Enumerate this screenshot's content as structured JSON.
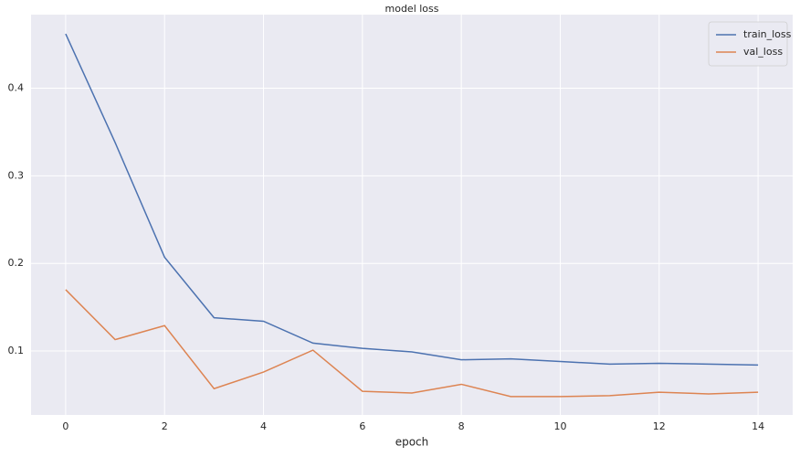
{
  "chart_data": {
    "type": "line",
    "title": "model loss",
    "xlabel": "epoch",
    "x": [
      0,
      1,
      2,
      3,
      4,
      5,
      6,
      7,
      8,
      9,
      10,
      11,
      12,
      13,
      14
    ],
    "series": [
      {
        "name": "train_loss",
        "color": "#4c72b0",
        "values": [
          0.462,
          0.338,
          0.207,
          0.138,
          0.134,
          0.109,
          0.103,
          0.099,
          0.09,
          0.091,
          0.088,
          0.085,
          0.086,
          0.085,
          0.084
        ]
      },
      {
        "name": "val_loss",
        "color": "#dd8452",
        "values": [
          0.17,
          0.113,
          0.129,
          0.057,
          0.076,
          0.101,
          0.054,
          0.052,
          0.062,
          0.048,
          0.048,
          0.049,
          0.053,
          0.051,
          0.053
        ]
      }
    ],
    "xlim": [
      -0.7,
      14.7
    ],
    "xticks": [
      0,
      2,
      4,
      6,
      8,
      10,
      12,
      14
    ],
    "ylim": [
      0.027,
      0.484
    ],
    "yticks": [
      0.1,
      0.2,
      0.3,
      0.4
    ],
    "grid": true,
    "legend": "upper right"
  }
}
